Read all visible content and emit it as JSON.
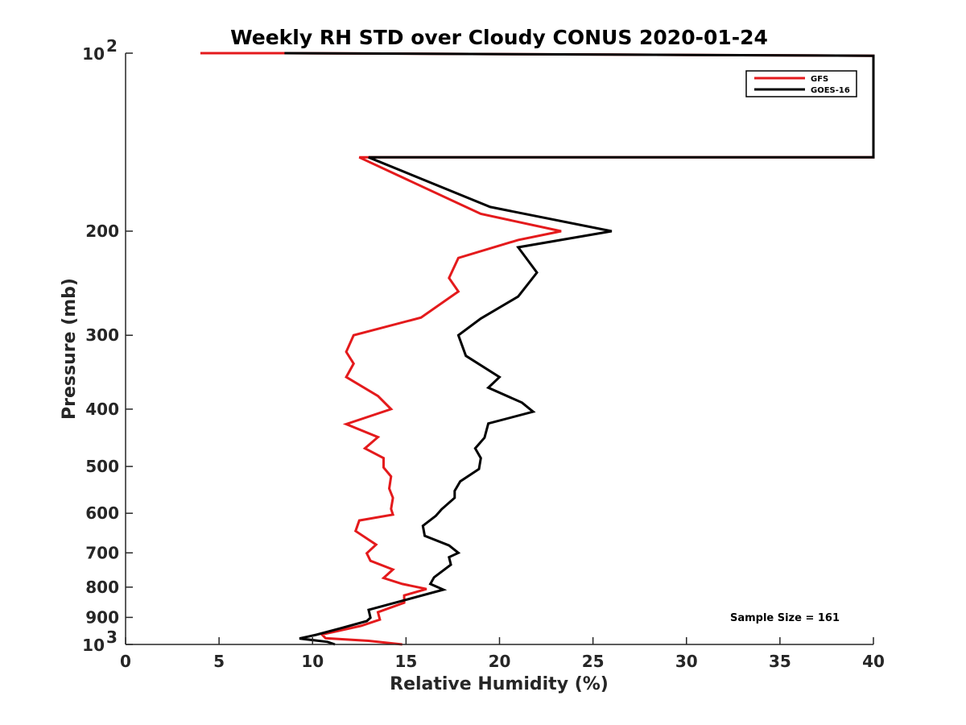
{
  "chart_data": {
    "type": "line",
    "title": "Weekly RH STD over Cloudy CONUS 2020-01-24",
    "xlabel": "Relative Humidity (%)",
    "ylabel": "Pressure (mb)",
    "xlim": [
      0,
      40
    ],
    "ylim": [
      100,
      1000
    ],
    "yscale": "log",
    "y_reversed": true,
    "grid": false,
    "legend_position": "top-right",
    "x_ticks": [
      0,
      5,
      10,
      15,
      20,
      25,
      30,
      35,
      40
    ],
    "y_ticks": [
      {
        "value": 100,
        "base": "10",
        "exp": "2"
      },
      {
        "value": 200,
        "label": "200"
      },
      {
        "value": 300,
        "label": "300"
      },
      {
        "value": 400,
        "label": "400"
      },
      {
        "value": 500,
        "label": "500"
      },
      {
        "value": 600,
        "label": "600"
      },
      {
        "value": 700,
        "label": "700"
      },
      {
        "value": 800,
        "label": "800"
      },
      {
        "value": 900,
        "label": "900"
      },
      {
        "value": 1000,
        "base": "10",
        "exp": "3"
      }
    ],
    "annotation": "Sample Size = 161",
    "series": [
      {
        "name": "GFS",
        "color": "#e41a1c",
        "points": [
          [
            4.0,
            100
          ],
          [
            8.5,
            100
          ],
          [
            40,
            101
          ],
          [
            40,
            150
          ],
          [
            12.5,
            150
          ],
          [
            19.0,
            187
          ],
          [
            23.3,
            200
          ],
          [
            21.0,
            207
          ],
          [
            17.8,
            222
          ],
          [
            17.3,
            240
          ],
          [
            17.8,
            253
          ],
          [
            15.8,
            280
          ],
          [
            12.2,
            300
          ],
          [
            11.8,
            320
          ],
          [
            12.2,
            335
          ],
          [
            11.8,
            353
          ],
          [
            13.5,
            380
          ],
          [
            14.2,
            400
          ],
          [
            11.8,
            424
          ],
          [
            13.5,
            446
          ],
          [
            12.8,
            466
          ],
          [
            13.8,
            484
          ],
          [
            13.8,
            502
          ],
          [
            14.2,
            520
          ],
          [
            14.1,
            545
          ],
          [
            14.3,
            565
          ],
          [
            14.2,
            590
          ],
          [
            14.3,
            603
          ],
          [
            12.5,
            617
          ],
          [
            12.3,
            643
          ],
          [
            13.4,
            678
          ],
          [
            12.9,
            701
          ],
          [
            13.1,
            722
          ],
          [
            14.3,
            747
          ],
          [
            13.8,
            772
          ],
          [
            14.8,
            790
          ],
          [
            16.1,
            806
          ],
          [
            14.9,
            826
          ],
          [
            14.9,
            850
          ],
          [
            13.5,
            882
          ],
          [
            13.6,
            908
          ],
          [
            12.6,
            930
          ],
          [
            10.5,
            962
          ],
          [
            10.7,
            976
          ],
          [
            13.0,
            986
          ],
          [
            14.8,
            1000
          ]
        ]
      },
      {
        "name": "GOES-16",
        "color": "#000000",
        "points": [
          [
            8.5,
            100
          ],
          [
            40,
            101
          ],
          [
            40,
            150
          ],
          [
            13.0,
            150
          ],
          [
            19.5,
            182
          ],
          [
            26.0,
            200
          ],
          [
            21.0,
            213
          ],
          [
            22.0,
            235
          ],
          [
            21.0,
            258
          ],
          [
            19.0,
            281
          ],
          [
            17.8,
            300
          ],
          [
            18.2,
            325
          ],
          [
            20.0,
            353
          ],
          [
            19.4,
            368
          ],
          [
            21.2,
            390
          ],
          [
            21.8,
            404
          ],
          [
            19.4,
            423
          ],
          [
            19.2,
            447
          ],
          [
            18.7,
            466
          ],
          [
            19.0,
            484
          ],
          [
            18.9,
            505
          ],
          [
            17.9,
            530
          ],
          [
            17.6,
            550
          ],
          [
            17.6,
            565
          ],
          [
            16.9,
            591
          ],
          [
            16.6,
            606
          ],
          [
            15.9,
            630
          ],
          [
            16.0,
            655
          ],
          [
            17.3,
            680
          ],
          [
            17.8,
            700
          ],
          [
            17.3,
            712
          ],
          [
            17.4,
            733
          ],
          [
            16.5,
            770
          ],
          [
            16.3,
            790
          ],
          [
            17.0,
            808
          ],
          [
            14.0,
            857
          ],
          [
            13.0,
            874
          ],
          [
            13.1,
            901
          ],
          [
            12.9,
            913
          ],
          [
            11.5,
            939
          ],
          [
            10.2,
            963
          ],
          [
            9.3,
            977
          ],
          [
            10.8,
            990
          ],
          [
            11.2,
            1000
          ]
        ]
      }
    ]
  }
}
